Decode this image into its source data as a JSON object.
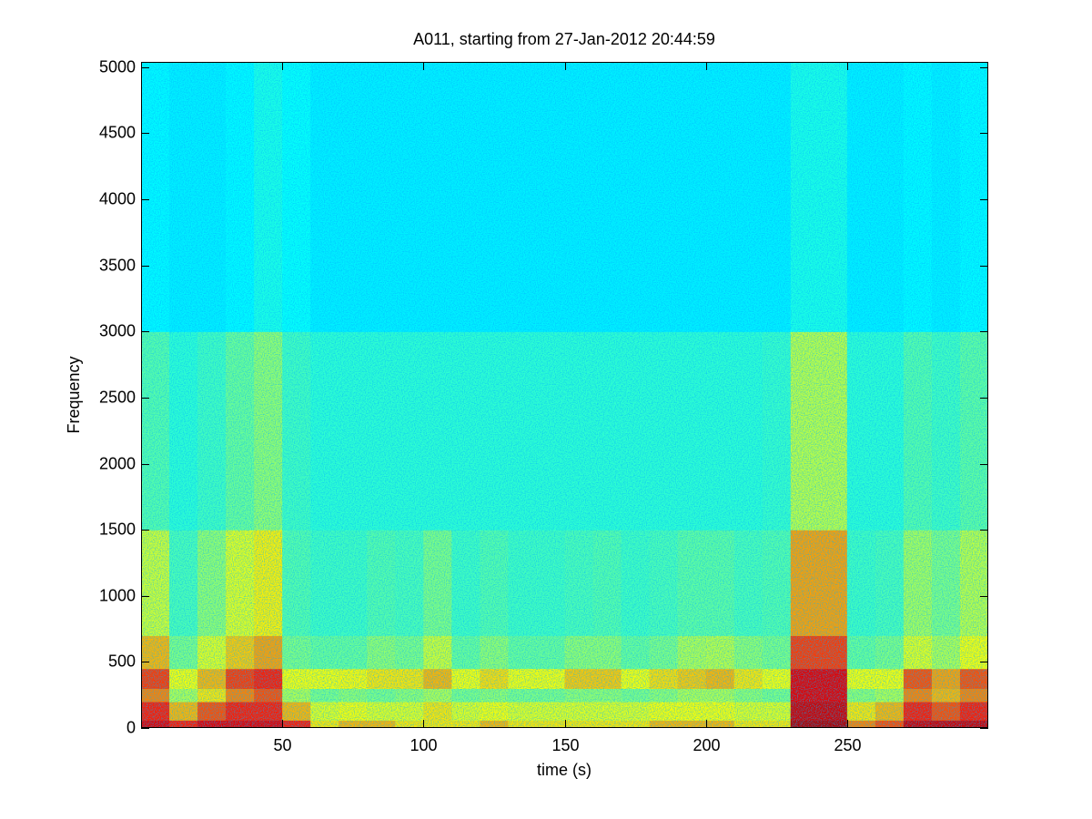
{
  "chart_data": {
    "type": "spectrogram",
    "title": "A011, starting from 27-Jan-2012 20:44:59",
    "xlabel": "time (s)",
    "ylabel": "Frequency",
    "xlim": [
      0,
      300
    ],
    "ylim": [
      0,
      5040
    ],
    "xticks": [
      50,
      100,
      150,
      200,
      250
    ],
    "yticks": [
      0,
      500,
      1000,
      1500,
      2000,
      2500,
      3000,
      3500,
      4000,
      4500,
      5000
    ],
    "colormap": "jet",
    "clim": [
      0,
      1
    ],
    "xbins": [
      0,
      10,
      20,
      30,
      40,
      50,
      60,
      70,
      80,
      90,
      100,
      110,
      120,
      130,
      140,
      150,
      160,
      170,
      180,
      190,
      200,
      210,
      220,
      230,
      240,
      250,
      260,
      270,
      280,
      290,
      300
    ],
    "ybins": [
      0,
      60,
      200,
      300,
      450,
      700,
      1500,
      3000,
      5040
    ],
    "values": [
      [
        0.9,
        0.85,
        0.9,
        0.9,
        0.9,
        0.85,
        0.65,
        0.7,
        0.7,
        0.65,
        0.65,
        0.65,
        0.7,
        0.65,
        0.65,
        0.65,
        0.65,
        0.65,
        0.7,
        0.7,
        0.7,
        0.65,
        0.65,
        0.95,
        0.95,
        0.75,
        0.8,
        0.92,
        0.92,
        0.92
      ],
      [
        0.85,
        0.7,
        0.8,
        0.85,
        0.85,
        0.7,
        0.6,
        0.62,
        0.6,
        0.6,
        0.65,
        0.6,
        0.62,
        0.6,
        0.6,
        0.6,
        0.6,
        0.6,
        0.62,
        0.62,
        0.62,
        0.6,
        0.6,
        0.92,
        0.92,
        0.65,
        0.7,
        0.85,
        0.8,
        0.85
      ],
      [
        0.75,
        0.55,
        0.65,
        0.75,
        0.8,
        0.55,
        0.5,
        0.52,
        0.5,
        0.52,
        0.55,
        0.5,
        0.52,
        0.5,
        0.5,
        0.52,
        0.52,
        0.5,
        0.52,
        0.55,
        0.55,
        0.52,
        0.5,
        0.9,
        0.9,
        0.52,
        0.55,
        0.75,
        0.7,
        0.75
      ],
      [
        0.82,
        0.62,
        0.7,
        0.82,
        0.85,
        0.62,
        0.62,
        0.63,
        0.65,
        0.65,
        0.7,
        0.62,
        0.66,
        0.62,
        0.62,
        0.68,
        0.68,
        0.62,
        0.66,
        0.68,
        0.7,
        0.65,
        0.62,
        0.9,
        0.9,
        0.62,
        0.62,
        0.8,
        0.72,
        0.8
      ],
      [
        0.7,
        0.5,
        0.6,
        0.68,
        0.72,
        0.5,
        0.48,
        0.48,
        0.52,
        0.5,
        0.58,
        0.48,
        0.52,
        0.48,
        0.48,
        0.52,
        0.52,
        0.48,
        0.5,
        0.55,
        0.56,
        0.52,
        0.5,
        0.82,
        0.82,
        0.48,
        0.5,
        0.6,
        0.55,
        0.62
      ],
      [
        0.58,
        0.45,
        0.52,
        0.6,
        0.64,
        0.46,
        0.44,
        0.44,
        0.46,
        0.45,
        0.5,
        0.44,
        0.46,
        0.44,
        0.44,
        0.45,
        0.46,
        0.44,
        0.45,
        0.47,
        0.47,
        0.45,
        0.46,
        0.72,
        0.72,
        0.44,
        0.45,
        0.54,
        0.5,
        0.56
      ],
      [
        0.46,
        0.42,
        0.44,
        0.48,
        0.52,
        0.44,
        0.42,
        0.42,
        0.42,
        0.42,
        0.42,
        0.42,
        0.42,
        0.42,
        0.42,
        0.42,
        0.42,
        0.42,
        0.42,
        0.42,
        0.42,
        0.42,
        0.43,
        0.56,
        0.56,
        0.42,
        0.42,
        0.46,
        0.44,
        0.47
      ],
      [
        0.37,
        0.36,
        0.36,
        0.37,
        0.4,
        0.38,
        0.36,
        0.36,
        0.36,
        0.36,
        0.36,
        0.36,
        0.36,
        0.36,
        0.36,
        0.36,
        0.36,
        0.36,
        0.36,
        0.36,
        0.36,
        0.36,
        0.36,
        0.4,
        0.4,
        0.36,
        0.36,
        0.37,
        0.36,
        0.37
      ]
    ]
  }
}
